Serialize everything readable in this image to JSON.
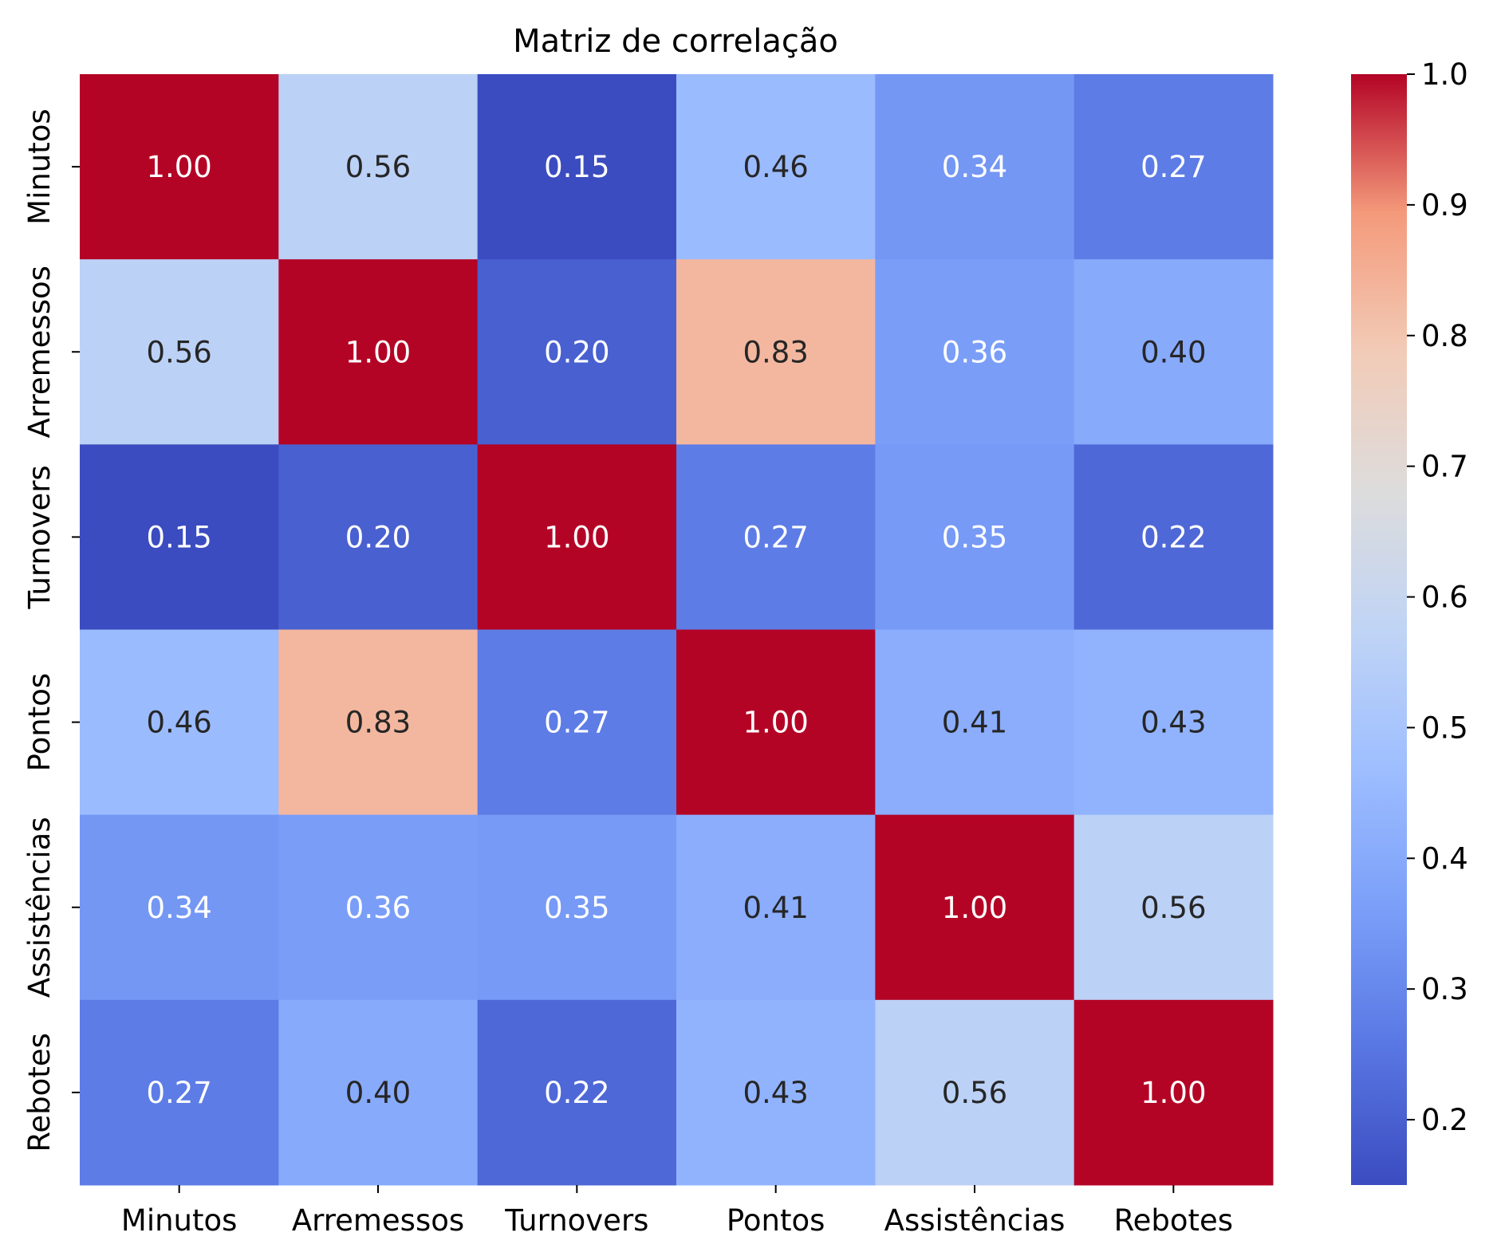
{
  "chart_data": {
    "type": "heatmap",
    "title": "Matriz de correlação",
    "xlabel": "",
    "ylabel": "",
    "x_categories": [
      "Minutos",
      "Arremessos",
      "Turnovers",
      "Pontos",
      "Assistências",
      "Rebotes"
    ],
    "y_categories": [
      "Minutos",
      "Arremessos",
      "Turnovers",
      "Pontos",
      "Assistências",
      "Rebotes"
    ],
    "values": [
      [
        1.0,
        0.56,
        0.15,
        0.46,
        0.34,
        0.27
      ],
      [
        0.56,
        1.0,
        0.2,
        0.83,
        0.36,
        0.4
      ],
      [
        0.15,
        0.2,
        1.0,
        0.27,
        0.35,
        0.22
      ],
      [
        0.46,
        0.83,
        0.27,
        1.0,
        0.41,
        0.43
      ],
      [
        0.34,
        0.36,
        0.35,
        0.41,
        1.0,
        0.56
      ],
      [
        0.27,
        0.4,
        0.22,
        0.43,
        0.56,
        1.0
      ]
    ],
    "value_format": "0.00",
    "colormap": "coolwarm",
    "colorbar": {
      "range": [
        0.15,
        1.0
      ],
      "ticks": [
        "0.2",
        "0.3",
        "0.4",
        "0.5",
        "0.6",
        "0.7",
        "0.8",
        "0.9",
        "1.0"
      ]
    },
    "grid": false
  }
}
